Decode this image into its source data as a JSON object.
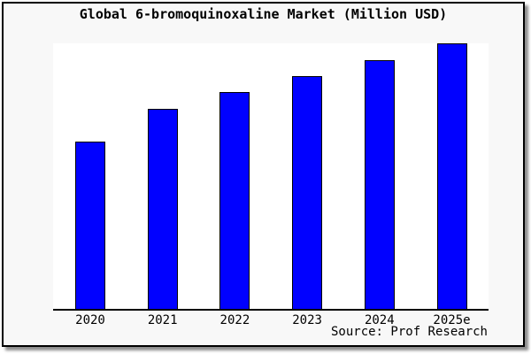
{
  "page": {
    "title": "Global 6-bromoquinoxaline Market (Million USD)",
    "source_credit": "Source: Prof Research"
  },
  "colors": {
    "bar_fill": "#0101ff",
    "bar_border": "#000000",
    "page_background": "#f8f8f8",
    "plot_background": "#ffffff",
    "frame_border": "#000000",
    "axis_line": "#000000"
  },
  "chart_data": {
    "type": "bar",
    "title": "Global 6-bromoquinoxaline Market (Million USD)",
    "categories": [
      "2020",
      "2021",
      "2022",
      "2023",
      "2024",
      "2025e"
    ],
    "values_pct_of_max": [
      63,
      75.3,
      81.7,
      87.8,
      93.8,
      100
    ],
    "value_axis": "unlabeled (no y-axis ticks, no gridlines, no data labels shown)",
    "xlabel": "",
    "ylabel": "",
    "ylim_pct": [
      0,
      100
    ],
    "grid": false,
    "legend": "none",
    "bar_color": "#0101ff",
    "source": "Source: Prof Research"
  }
}
